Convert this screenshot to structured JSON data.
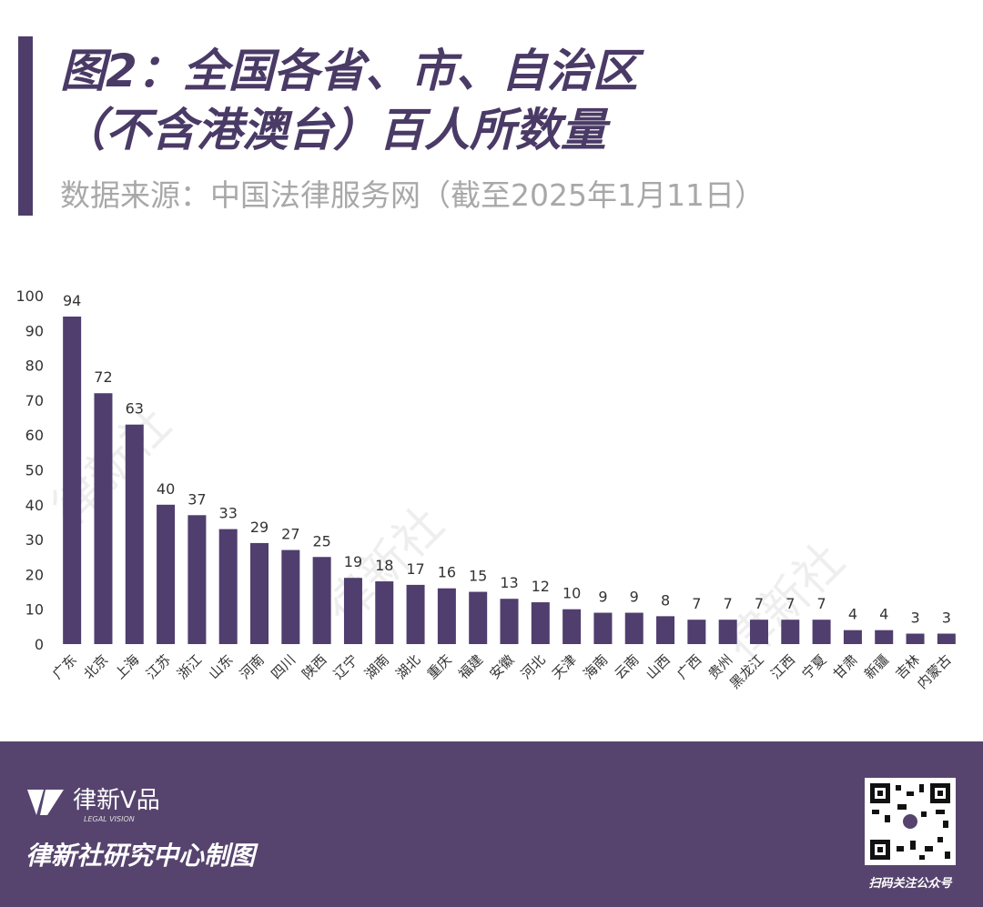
{
  "chart_data": {
    "type": "bar",
    "title": [
      "图2：全国各省、市、自治区",
      "（不含港澳台）百人所数量"
    ],
    "subtitle": "数据来源：中国法律服务网（截至2025年1月11日）",
    "watermark": "律新社",
    "categories": [
      "广东",
      "北京",
      "上海",
      "江苏",
      "浙江",
      "山东",
      "河南",
      "四川",
      "陕西",
      "辽宁",
      "湖南",
      "湖北",
      "重庆",
      "福建",
      "安徽",
      "河北",
      "天津",
      "海南",
      "云南",
      "山西",
      "广西",
      "贵州",
      "黑龙江",
      "江西",
      "宁夏",
      "甘肃",
      "新疆",
      "吉林",
      "内蒙古"
    ],
    "values": [
      94,
      72,
      63,
      40,
      37,
      33,
      29,
      27,
      25,
      19,
      18,
      17,
      16,
      15,
      13,
      12,
      10,
      9,
      9,
      8,
      7,
      7,
      7,
      7,
      7,
      4,
      4,
      3,
      3
    ],
    "color": "#4f3e6e",
    "ylim": [
      0,
      100
    ],
    "yticks": [
      0,
      10,
      20,
      30,
      40,
      50,
      60,
      70,
      80,
      90,
      100
    ],
    "grid": false
  },
  "footer": {
    "brand": "律新V品",
    "brand_sub": "LEGAL VISION",
    "credit": "律新社研究中心制图",
    "qr_caption": "扫码关注公众号"
  }
}
